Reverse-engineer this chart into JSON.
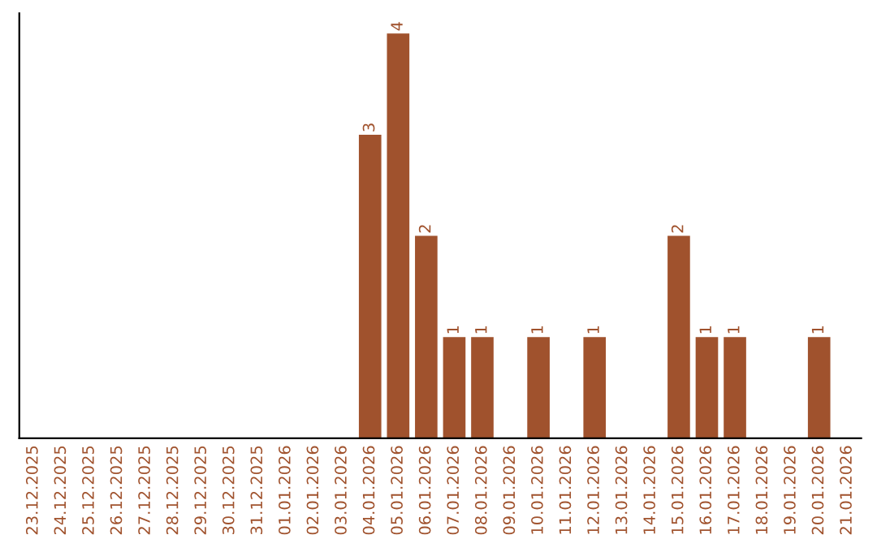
{
  "chart_data": {
    "type": "bar",
    "categories": [
      "23.12.2025",
      "24.12.2025",
      "25.12.2025",
      "26.12.2025",
      "27.12.2025",
      "28.12.2025",
      "29.12.2025",
      "30.12.2025",
      "31.12.2025",
      "01.01.2026",
      "02.01.2026",
      "03.01.2026",
      "04.01.2026",
      "05.01.2026",
      "06.01.2026",
      "07.01.2026",
      "08.01.2026",
      "09.01.2026",
      "10.01.2026",
      "11.01.2026",
      "12.01.2026",
      "13.01.2026",
      "14.01.2026",
      "15.01.2026",
      "16.01.2026",
      "17.01.2026",
      "18.01.2026",
      "19.01.2026",
      "20.01.2026",
      "21.01.2026"
    ],
    "values": [
      null,
      null,
      null,
      null,
      null,
      null,
      null,
      null,
      null,
      null,
      null,
      null,
      3,
      4,
      2,
      1,
      1,
      null,
      1,
      null,
      1,
      null,
      null,
      2,
      1,
      1,
      null,
      null,
      1,
      null
    ],
    "value_labels": [
      null,
      null,
      null,
      null,
      null,
      null,
      null,
      null,
      null,
      null,
      null,
      null,
      "3",
      "4",
      "2",
      "1",
      "1",
      null,
      "1",
      null,
      "1",
      null,
      null,
      "2",
      "1",
      "1",
      null,
      null,
      "1",
      null
    ],
    "color": "#a0522d",
    "grid": false,
    "legend": false
  }
}
